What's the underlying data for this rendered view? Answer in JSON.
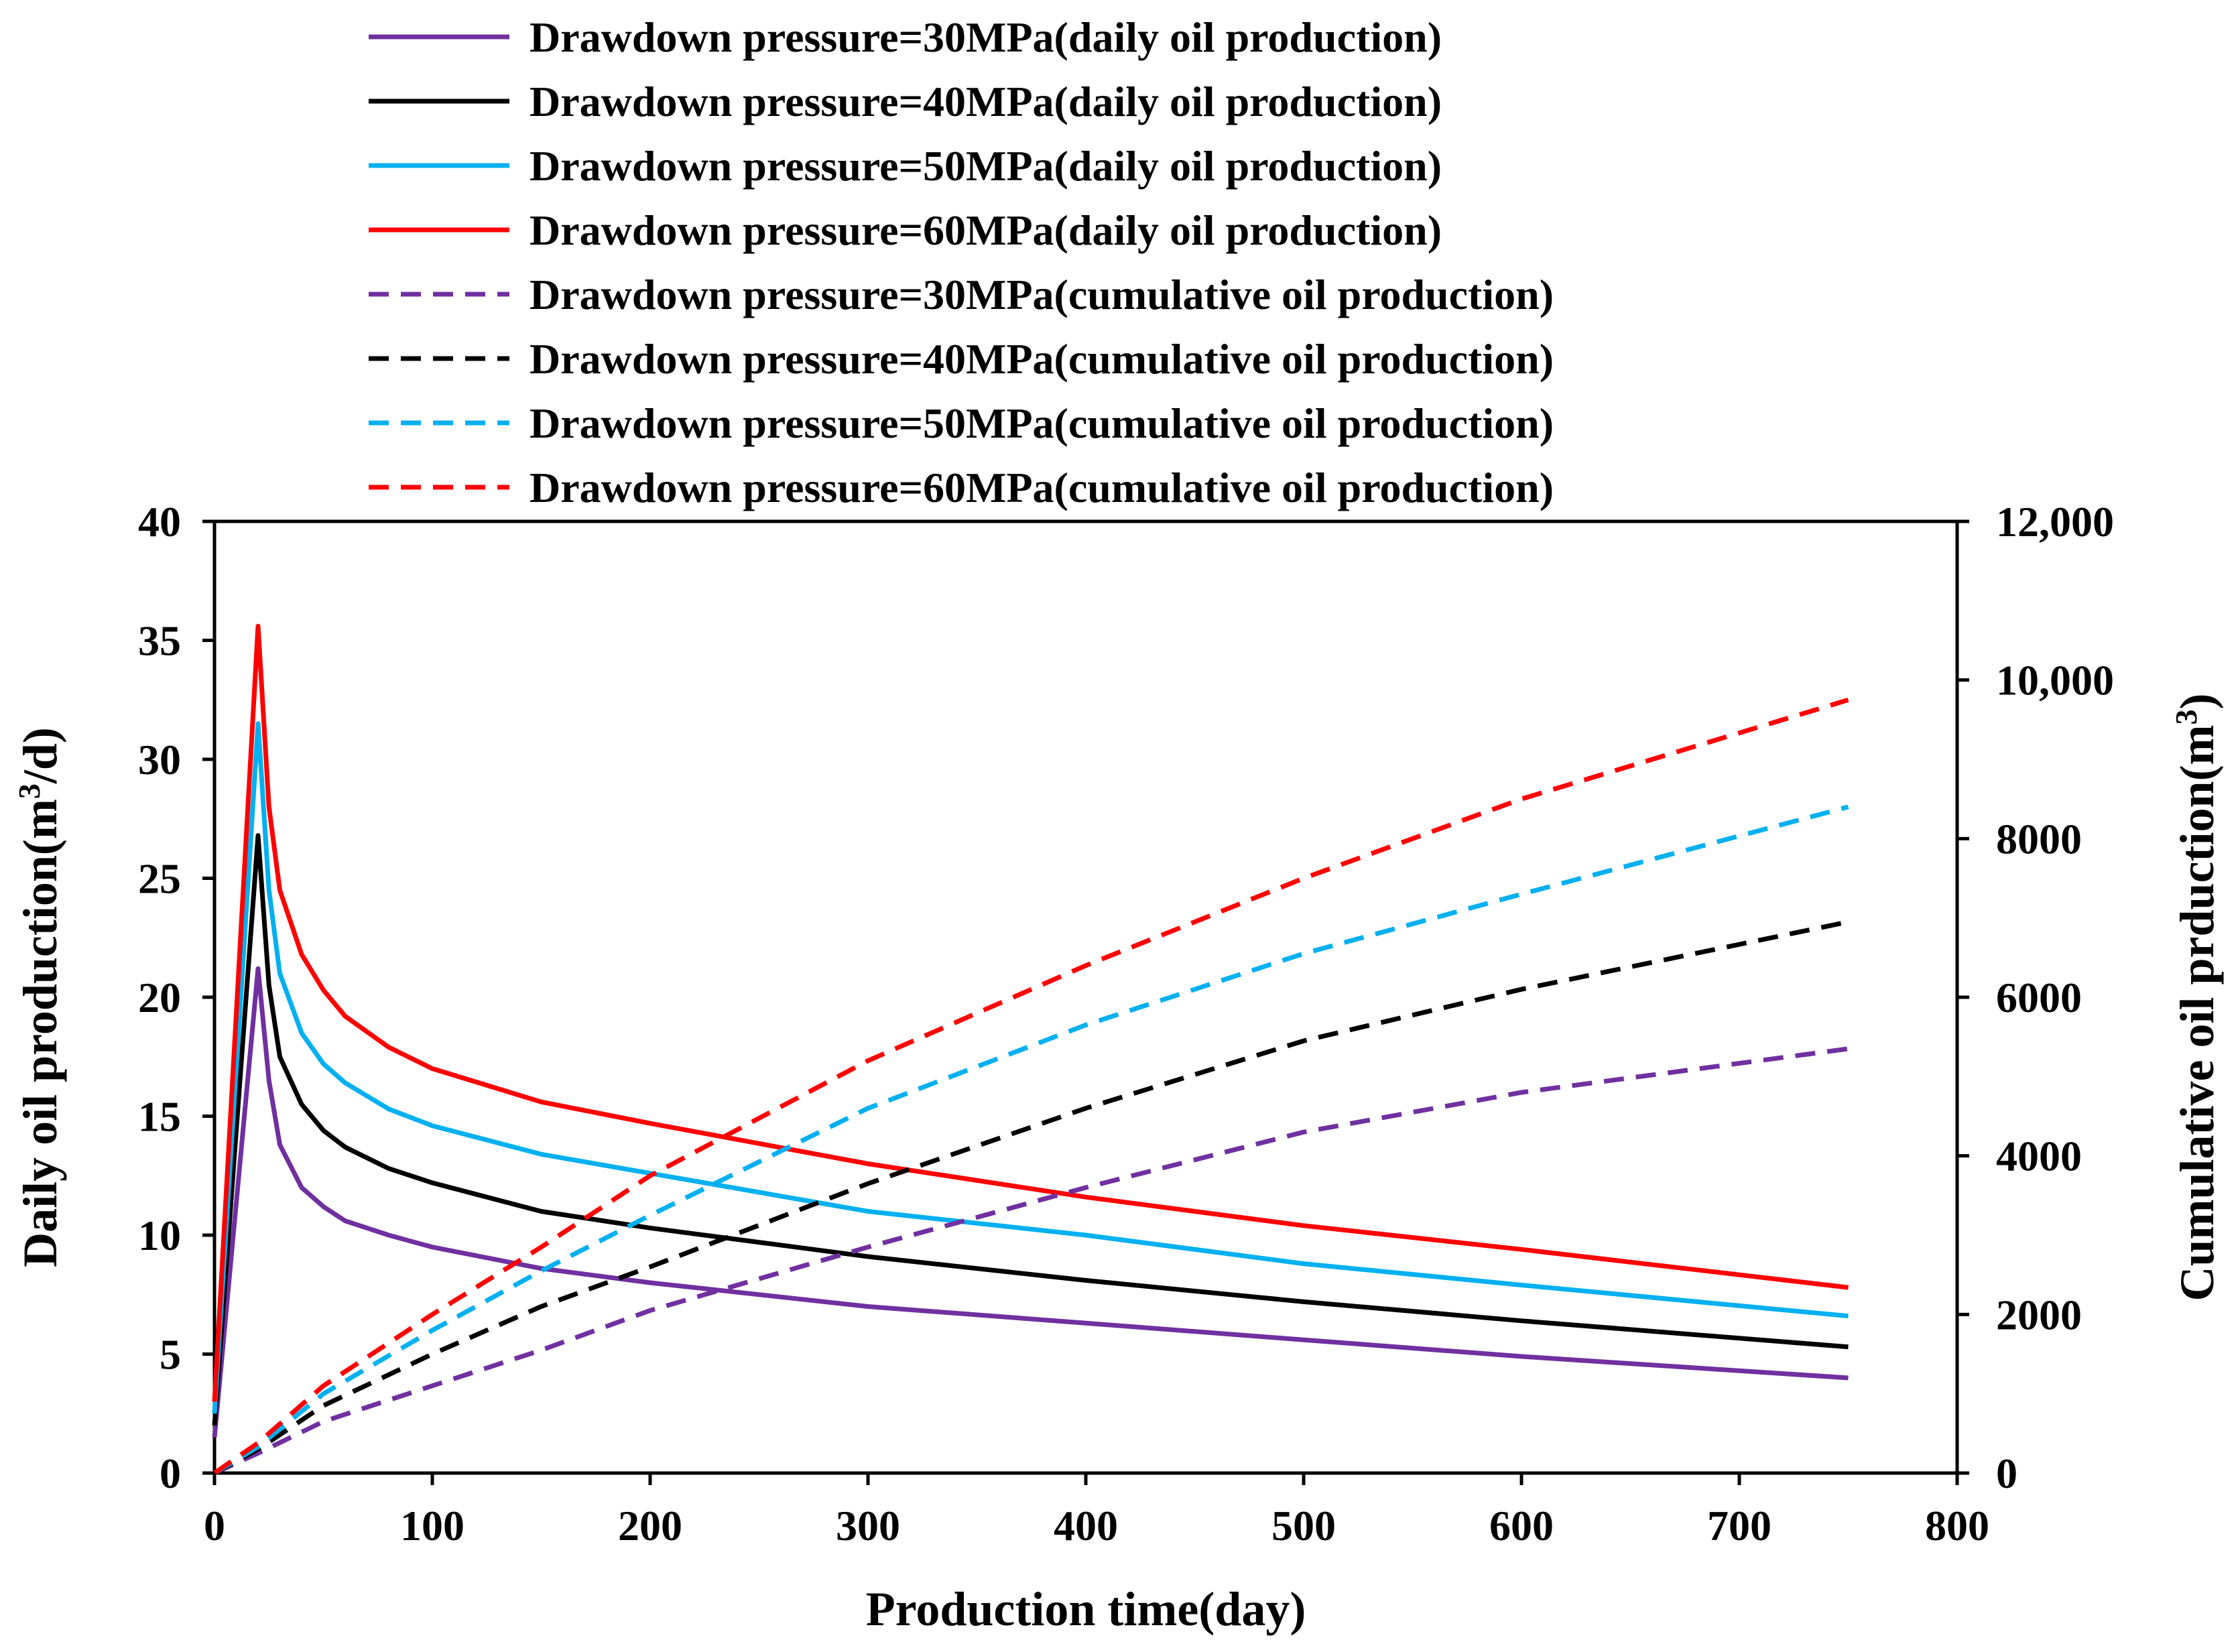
{
  "chart_data": {
    "type": "line",
    "title": "",
    "xlabel": "Production time(day)",
    "ylabel_left": "Daily oil production(m³/d)",
    "ylabel_right": "Cumulative oil prduction(m³)",
    "xlim": [
      0,
      800
    ],
    "ylim_left": [
      0,
      40
    ],
    "ylim_right": [
      0,
      12000
    ],
    "x_ticks": [
      0,
      100,
      200,
      300,
      400,
      500,
      600,
      700,
      800
    ],
    "x_tick_labels": [
      "0",
      "100",
      "200",
      "300",
      "400",
      "500",
      "600",
      "700",
      "800"
    ],
    "y_left_ticks": [
      0,
      5,
      10,
      15,
      20,
      25,
      30,
      35,
      40
    ],
    "y_left_tick_labels": [
      "0",
      "5",
      "10",
      "15",
      "20",
      "25",
      "30",
      "35",
      "40"
    ],
    "y_right_ticks": [
      0,
      2000,
      4000,
      6000,
      8000,
      10000,
      12000
    ],
    "y_right_tick_labels": [
      "0",
      "2000",
      "4000",
      "6000",
      "8000",
      "10,000",
      "12,000"
    ],
    "grid": false,
    "legend_position": "top",
    "series": [
      {
        "name": "Drawdown pressure=30MPa(daily oil production)",
        "axis": "left",
        "style": "solid",
        "color": "#7030a0",
        "x": [
          0,
          20,
          25,
          30,
          40,
          50,
          60,
          80,
          100,
          150,
          200,
          300,
          400,
          500,
          600,
          750
        ],
        "y": [
          1.5,
          21.2,
          16.5,
          13.8,
          12.0,
          11.2,
          10.6,
          10.0,
          9.5,
          8.6,
          8.0,
          7.0,
          6.3,
          5.6,
          4.9,
          4.0
        ]
      },
      {
        "name": "Drawdown pressure=40MPa(daily oil production)",
        "axis": "left",
        "style": "solid",
        "color": "#000000",
        "x": [
          0,
          20,
          25,
          30,
          40,
          50,
          60,
          80,
          100,
          150,
          200,
          300,
          400,
          500,
          600,
          750
        ],
        "y": [
          2.0,
          26.8,
          20.5,
          17.5,
          15.5,
          14.4,
          13.7,
          12.8,
          12.2,
          11.0,
          10.3,
          9.1,
          8.1,
          7.2,
          6.4,
          5.3
        ]
      },
      {
        "name": "Drawdown pressure=50MPa(daily oil production)",
        "axis": "left",
        "style": "solid",
        "color": "#00b0f0",
        "x": [
          0,
          20,
          25,
          30,
          40,
          50,
          60,
          80,
          100,
          150,
          200,
          300,
          400,
          500,
          600,
          750
        ],
        "y": [
          2.5,
          31.5,
          24.5,
          21.0,
          18.5,
          17.2,
          16.4,
          15.3,
          14.6,
          13.4,
          12.6,
          11.0,
          10.0,
          8.8,
          7.9,
          6.6
        ]
      },
      {
        "name": "Drawdown pressure=60MPa(daily oil production)",
        "axis": "left",
        "style": "solid",
        "color": "#ff0000",
        "x": [
          0,
          20,
          25,
          30,
          40,
          50,
          60,
          80,
          100,
          150,
          200,
          300,
          400,
          500,
          600,
          750
        ],
        "y": [
          3.0,
          35.6,
          28.0,
          24.5,
          21.8,
          20.3,
          19.2,
          17.9,
          17.0,
          15.6,
          14.7,
          13.0,
          11.6,
          10.4,
          9.4,
          7.8
        ]
      },
      {
        "name": "Drawdown pressure=30MPa(cumulative oil production)",
        "axis": "right",
        "style": "dashed",
        "color": "#7030a0",
        "x": [
          0,
          20,
          50,
          100,
          150,
          200,
          300,
          400,
          500,
          600,
          750
        ],
        "y": [
          0,
          250,
          650,
          1100,
          1550,
          2050,
          2850,
          3600,
          4300,
          4800,
          5350
        ]
      },
      {
        "name": "Drawdown pressure=40MPa(cumulative oil production)",
        "axis": "right",
        "style": "dashed",
        "color": "#000000",
        "x": [
          0,
          20,
          50,
          100,
          150,
          200,
          300,
          400,
          500,
          600,
          750
        ],
        "y": [
          0,
          300,
          850,
          1500,
          2100,
          2600,
          3650,
          4600,
          5450,
          6100,
          6950
        ]
      },
      {
        "name": "Drawdown pressure=50MPa(cumulative oil production)",
        "axis": "right",
        "style": "dashed",
        "color": "#00b0f0",
        "x": [
          0,
          20,
          50,
          100,
          150,
          200,
          300,
          400,
          500,
          600,
          750
        ],
        "y": [
          0,
          330,
          1000,
          1800,
          2550,
          3250,
          4600,
          5650,
          6550,
          7300,
          8400
        ]
      },
      {
        "name": "Drawdown pressure=60MPa(cumulative oil production)",
        "axis": "right",
        "style": "dashed",
        "color": "#ff0000",
        "x": [
          0,
          20,
          50,
          100,
          150,
          200,
          300,
          400,
          500,
          600,
          750
        ],
        "y": [
          0,
          380,
          1100,
          2000,
          2850,
          3750,
          5200,
          6400,
          7500,
          8500,
          9750
        ]
      }
    ]
  }
}
